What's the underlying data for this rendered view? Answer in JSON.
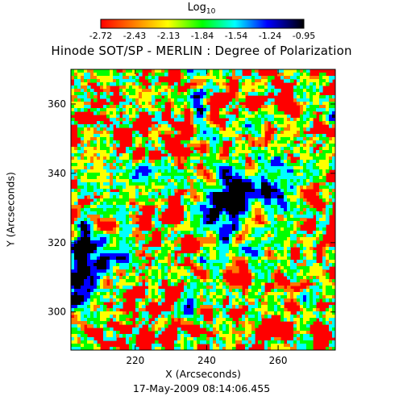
{
  "chart_data": {
    "type": "heatmap",
    "title": "Hinode SOT/SP - MERLIN : Degree of Polarization",
    "xlabel": "X (Arcseconds)",
    "ylabel": "Y (Arcseconds)",
    "x_ticks": [
      220,
      240,
      260
    ],
    "y_ticks": [
      300,
      320,
      340,
      360
    ],
    "xlim": [
      202,
      276
    ],
    "ylim": [
      289,
      370
    ],
    "colorbar": {
      "label_base": "Log",
      "label_sub": "10",
      "ticks": [
        "-2.72",
        "-2.43",
        "-2.13",
        "-1.84",
        "-1.54",
        "-1.24",
        "-0.95"
      ],
      "range": [
        -2.72,
        -0.95
      ],
      "colormap": [
        "#ff0000",
        "#ff7a00",
        "#ffff00",
        "#00ff00",
        "#00ffff",
        "#0000ff",
        "#000000"
      ]
    },
    "timestamp": "17-May-2009 08:14:06.455",
    "grid": false
  }
}
